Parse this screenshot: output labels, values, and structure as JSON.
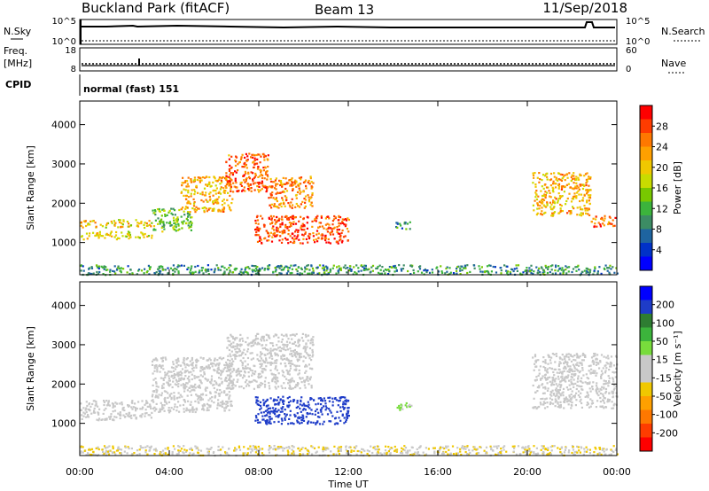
{
  "header": {
    "station": "Buckland Park (fitACF)",
    "beam": "Beam 13",
    "date": "11/Sep/2018"
  },
  "strips": {
    "nsky_label": "N.Sky",
    "nsky_ticks": [
      "10^5",
      "10^0"
    ],
    "nsearch_label": "N.Search",
    "nsearch_ticks": [
      "10^5",
      "10^0"
    ],
    "freq_label_1": "Freq.",
    "freq_label_2": "[MHz]",
    "freq_ticks": [
      "18",
      "8"
    ],
    "nave_label": "Nave",
    "nave_ticks": [
      "60",
      "0"
    ],
    "cpid_label": "CPID",
    "cpid_text": "normal (fast) 151"
  },
  "colorbars": {
    "power_label": "Power [dB]",
    "power_ticks": [
      "28",
      "24",
      "20",
      "16",
      "12",
      "8",
      "4"
    ],
    "power_colors": [
      "#ff0000",
      "#ff3c00",
      "#ff7800",
      "#ffa000",
      "#f0c800",
      "#c8dc00",
      "#78c800",
      "#3cb43c",
      "#3c8c64",
      "#1e64a0",
      "#0032c8",
      "#0000ff"
    ],
    "velocity_label": "Velocity [m s⁻¹]",
    "velocity_ticks": [
      "200",
      "100",
      "50",
      "15",
      "-15",
      "-50",
      "-100",
      "-200"
    ],
    "velocity_colors": [
      "#0000ff",
      "#1e3cc8",
      "#2e7d32",
      "#3cb43c",
      "#78dc3c",
      "#c8c8c8",
      "#c8c8c8",
      "#f0c800",
      "#ffa000",
      "#ff7800",
      "#ff3c00",
      "#ff0000"
    ],
    "gray_scatter": "#bcbcbc"
  },
  "axes": {
    "ylabel": "Slant Range [km]",
    "xlabel": "Time UT",
    "yticks": [
      "4000",
      "3000",
      "2000",
      "1000"
    ],
    "xticks": [
      "00:00",
      "04:00",
      "08:00",
      "12:00",
      "16:00",
      "20:00",
      "00:00"
    ]
  },
  "chart_data": [
    {
      "type": "heatmap",
      "title": "Power",
      "xlabel": "Time UT",
      "ylabel": "Slant Range [km]",
      "xlim_hours": [
        0,
        24
      ],
      "ylim_km": [
        180,
        4600
      ],
      "color_scale_label": "Power [dB]",
      "color_range": [
        0,
        32
      ],
      "regions": [
        {
          "t": [
            0.0,
            3.2
          ],
          "r": [
            1100,
            1300
          ],
          "value": 18
        },
        {
          "t": [
            0.0,
            3.2
          ],
          "r": [
            1400,
            1600
          ],
          "value": 20
        },
        {
          "t": [
            3.2,
            5.0
          ],
          "r": [
            1300,
            1900
          ],
          "value": 14
        },
        {
          "t": [
            4.5,
            6.8
          ],
          "r": [
            1800,
            2700
          ],
          "value": 22
        },
        {
          "t": [
            6.5,
            8.4
          ],
          "r": [
            2300,
            3300
          ],
          "value": 26
        },
        {
          "t": [
            8.4,
            10.4
          ],
          "r": [
            1900,
            2700
          ],
          "value": 24
        },
        {
          "t": [
            7.8,
            12.0
          ],
          "r": [
            1000,
            1700
          ],
          "value": 28
        },
        {
          "t": [
            14.0,
            14.8
          ],
          "r": [
            1350,
            1550
          ],
          "value": 10
        },
        {
          "t": [
            20.2,
            22.8
          ],
          "r": [
            1700,
            2800
          ],
          "value": 22
        },
        {
          "t": [
            22.8,
            24.0
          ],
          "r": [
            1400,
            1700
          ],
          "value": 26
        },
        {
          "t": [
            0.0,
            24.0
          ],
          "r": [
            200,
            450
          ],
          "value": 10
        }
      ]
    },
    {
      "type": "heatmap",
      "title": "Velocity",
      "xlabel": "Time UT",
      "ylabel": "Slant Range [km]",
      "xlim_hours": [
        0,
        24
      ],
      "ylim_km": [
        180,
        4600
      ],
      "color_scale_label": "Velocity [m s-1]",
      "color_range": [
        -200,
        200
      ],
      "regions": [
        {
          "t": [
            0.0,
            3.2
          ],
          "r": [
            1100,
            1600
          ],
          "value": 0
        },
        {
          "t": [
            3.2,
            6.8
          ],
          "r": [
            1300,
            2700
          ],
          "value": 0
        },
        {
          "t": [
            6.5,
            10.4
          ],
          "r": [
            1900,
            3300
          ],
          "value": 0
        },
        {
          "t": [
            7.8,
            12.0
          ],
          "r": [
            1000,
            1700
          ],
          "value": 150
        },
        {
          "t": [
            14.0,
            14.8
          ],
          "r": [
            1350,
            1550
          ],
          "value": 40
        },
        {
          "t": [
            20.2,
            24.0
          ],
          "r": [
            1400,
            2800
          ],
          "value": 0
        },
        {
          "t": [
            0.0,
            24.0
          ],
          "r": [
            200,
            450
          ],
          "value": -30
        }
      ]
    }
  ]
}
